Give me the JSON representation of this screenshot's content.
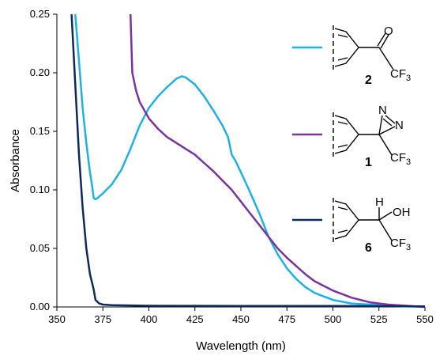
{
  "chart_data": {
    "type": "line",
    "xlabel": "Wavelength (nm)",
    "ylabel": "Absorbance",
    "xlim": [
      350,
      550
    ],
    "ylim": [
      0,
      0.25
    ],
    "x_ticks": [
      "350",
      "375",
      "400",
      "425",
      "450",
      "475",
      "500",
      "525",
      "550"
    ],
    "y_ticks": [
      "0.00",
      "0.05",
      "0.10",
      "0.15",
      "0.20",
      "0.25"
    ],
    "grid": false,
    "legend_placement": "right",
    "series": [
      {
        "compound": "2",
        "color": "#1eb0e6",
        "points": [
          [
            360,
            0.25
          ],
          [
            362,
            0.21
          ],
          [
            364,
            0.17
          ],
          [
            366,
            0.14
          ],
          [
            368,
            0.115
          ],
          [
            369,
            0.105
          ],
          [
            370,
            0.093
          ],
          [
            371,
            0.092
          ],
          [
            372,
            0.093
          ],
          [
            375,
            0.097
          ],
          [
            380,
            0.105
          ],
          [
            385,
            0.117
          ],
          [
            390,
            0.135
          ],
          [
            395,
            0.155
          ],
          [
            400,
            0.17
          ],
          [
            405,
            0.18
          ],
          [
            410,
            0.188
          ],
          [
            415,
            0.195
          ],
          [
            418,
            0.197
          ],
          [
            420,
            0.196
          ],
          [
            425,
            0.19
          ],
          [
            430,
            0.18
          ],
          [
            435,
            0.168
          ],
          [
            440,
            0.155
          ],
          [
            443,
            0.145
          ],
          [
            445,
            0.13
          ],
          [
            447,
            0.125
          ],
          [
            450,
            0.115
          ],
          [
            455,
            0.098
          ],
          [
            460,
            0.08
          ],
          [
            465,
            0.06
          ],
          [
            470,
            0.045
          ],
          [
            475,
            0.033
          ],
          [
            480,
            0.024
          ],
          [
            485,
            0.017
          ],
          [
            490,
            0.012
          ],
          [
            495,
            0.009
          ],
          [
            500,
            0.006
          ],
          [
            510,
            0.003
          ],
          [
            520,
            0.002
          ],
          [
            530,
            0.001
          ],
          [
            540,
            0.0005
          ],
          [
            550,
            0.0
          ]
        ]
      },
      {
        "compound": "1",
        "color": "#7a33a0",
        "points": [
          [
            390,
            0.25
          ],
          [
            391,
            0.2
          ],
          [
            393,
            0.185
          ],
          [
            395,
            0.175
          ],
          [
            400,
            0.161
          ],
          [
            405,
            0.152
          ],
          [
            410,
            0.145
          ],
          [
            415,
            0.14
          ],
          [
            420,
            0.135
          ],
          [
            425,
            0.13
          ],
          [
            430,
            0.123
          ],
          [
            435,
            0.116
          ],
          [
            440,
            0.108
          ],
          [
            445,
            0.1
          ],
          [
            450,
            0.09
          ],
          [
            455,
            0.08
          ],
          [
            460,
            0.07
          ],
          [
            465,
            0.06
          ],
          [
            470,
            0.05
          ],
          [
            475,
            0.042
          ],
          [
            480,
            0.035
          ],
          [
            485,
            0.028
          ],
          [
            490,
            0.022
          ],
          [
            495,
            0.018
          ],
          [
            500,
            0.014
          ],
          [
            505,
            0.011
          ],
          [
            510,
            0.008
          ],
          [
            515,
            0.006
          ],
          [
            520,
            0.004
          ],
          [
            525,
            0.003
          ],
          [
            530,
            0.002
          ],
          [
            540,
            0.001
          ],
          [
            550,
            0.0
          ]
        ]
      },
      {
        "compound": "6",
        "color": "#0d2a5c",
        "points": [
          [
            358,
            0.25
          ],
          [
            360,
            0.19
          ],
          [
            362,
            0.13
          ],
          [
            364,
            0.085
          ],
          [
            366,
            0.05
          ],
          [
            368,
            0.028
          ],
          [
            370,
            0.015
          ],
          [
            371,
            0.006
          ],
          [
            373,
            0.003
          ],
          [
            375,
            0.002
          ],
          [
            380,
            0.0015
          ],
          [
            400,
            0.001
          ],
          [
            450,
            0.0008
          ],
          [
            500,
            0.0008
          ],
          [
            550,
            0.0005
          ]
        ]
      }
    ],
    "legend": [
      {
        "compound": "2",
        "label": "2",
        "substituent": "CF3",
        "right_group": "O"
      },
      {
        "compound": "1",
        "label": "1",
        "substituent": "CF3",
        "right_group": "N"
      },
      {
        "compound": "6",
        "label": "6",
        "substituent": "CF3",
        "right_group": "OH",
        "top_group": "H"
      }
    ]
  }
}
